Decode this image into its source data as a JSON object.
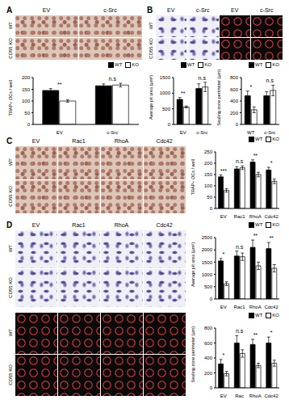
{
  "image_panels": [
    {
      "label": "A",
      "columns": [
        "EV",
        "c-Src"
      ],
      "rows": [
        "WT",
        "CD55 KO"
      ]
    },
    {
      "label": "B",
      "columns": [
        "EV",
        "c-Src",
        "EV",
        "c-Src"
      ],
      "rows": [
        "WT",
        "CD55 KO"
      ]
    },
    {
      "label": "C",
      "columns": [
        "EV",
        "Rac1",
        "RhoA",
        "Cdc42"
      ],
      "rows": [
        "WT",
        "CD55 KO"
      ]
    },
    {
      "label": "D",
      "columns": [
        "EV",
        "Rac1",
        "RhoA",
        "Cdc42"
      ],
      "rows": [
        "WT",
        "CD55 KO",
        "WT",
        "CD55 KO"
      ]
    }
  ],
  "chart_data": [
    {
      "type": "bar",
      "y_label": "TRAP+ OCs / well",
      "categories": [
        "EV",
        "c-Src"
      ],
      "series": [
        {
          "name": "WT",
          "color": "#000000",
          "values": [
            145,
            165
          ],
          "errors": [
            8,
            8
          ]
        },
        {
          "name": "KO",
          "color": "#ffffff",
          "values": [
            100,
            168
          ],
          "errors": [
            5,
            8
          ]
        }
      ],
      "ylim": [
        0,
        200
      ],
      "yticks": [
        0,
        50,
        100,
        150,
        200
      ],
      "legend": "top right",
      "annotations": [
        "**",
        "n.s"
      ]
    },
    {
      "type": "bar",
      "y_label": "Average pit area (µm²)",
      "categories": [
        "EV",
        "c-Src"
      ],
      "series": [
        {
          "name": "WT",
          "color": "#000000",
          "values": [
            800,
            1150
          ],
          "errors": [
            60,
            150
          ]
        },
        {
          "name": "KO",
          "color": "#ffffff",
          "values": [
            560,
            1200
          ],
          "errors": [
            30,
            150
          ]
        }
      ],
      "ylim": [
        0,
        1500
      ],
      "yticks": [
        0,
        500,
        1000,
        1500
      ],
      "legend": "top right",
      "annotations": [
        "**",
        "n.s"
      ]
    },
    {
      "type": "bar",
      "y_label": "Sealing zone perimeter (µm)",
      "categories": [
        "WT",
        "c-Src"
      ],
      "series": [
        {
          "name": "WT",
          "color": "#000000",
          "values": [
            490,
            490
          ],
          "errors": [
            80,
            70
          ]
        },
        {
          "name": "KO",
          "color": "#ffffff",
          "values": [
            250,
            580
          ],
          "errors": [
            50,
            90
          ]
        }
      ],
      "ylim": [
        0,
        800
      ],
      "yticks": [
        0,
        200,
        400,
        600,
        800
      ],
      "legend": "top right",
      "annotations": [
        "*",
        "n.s"
      ]
    },
    {
      "type": "bar",
      "y_label": "TRAP+ OCs / well",
      "categories": [
        "EV",
        "Rac1",
        "RhoA",
        "Cdc42"
      ],
      "series": [
        {
          "name": "WT",
          "color": "#000000",
          "values": [
            140,
            175,
            205,
            170
          ],
          "errors": [
            8,
            10,
            10,
            12
          ]
        },
        {
          "name": "KO",
          "color": "#ffffff",
          "values": [
            80,
            180,
            150,
            120
          ],
          "errors": [
            8,
            8,
            10,
            10
          ]
        }
      ],
      "ylim": [
        0,
        250
      ],
      "yticks": [
        0,
        50,
        100,
        150,
        200,
        250
      ],
      "legend": "top right",
      "annotations": [
        "***",
        "n.s",
        "**",
        "*"
      ]
    },
    {
      "type": "bar",
      "y_label": "Average pit area (µm²)",
      "categories": [
        "EV",
        "Rac1",
        "RhoA",
        "Cdc42"
      ],
      "series": [
        {
          "name": "WT",
          "color": "#000000",
          "values": [
            1550,
            1750,
            2100,
            2050
          ],
          "errors": [
            100,
            200,
            300,
            250
          ]
        },
        {
          "name": "KO",
          "color": "#ffffff",
          "values": [
            620,
            1720,
            1350,
            1250
          ],
          "errors": [
            80,
            150,
            150,
            150
          ]
        }
      ],
      "ylim": [
        0,
        2500
      ],
      "yticks": [
        0,
        500,
        1000,
        1500,
        2000,
        2500
      ],
      "legend": "top right",
      "annotations": [
        "*",
        "n.s",
        "**",
        "**"
      ]
    },
    {
      "type": "bar",
      "y_label": "Sealing zone perimeter (µm)",
      "categories": [
        "EV",
        "Rac",
        "RhoA",
        "Cdc42"
      ],
      "series": [
        {
          "name": "WT",
          "color": "#000000",
          "values": [
            320,
            600,
            580,
            600
          ],
          "errors": [
            60,
            100,
            70,
            80
          ]
        },
        {
          "name": "KO",
          "color": "#ffffff",
          "values": [
            190,
            460,
            300,
            330
          ],
          "errors": [
            30,
            50,
            30,
            40
          ]
        }
      ],
      "ylim": [
        0,
        800
      ],
      "yticks": [
        0,
        200,
        400,
        600,
        800
      ],
      "legend": "top right",
      "annotations": [
        "*",
        "n.s",
        "**",
        "*"
      ]
    }
  ]
}
